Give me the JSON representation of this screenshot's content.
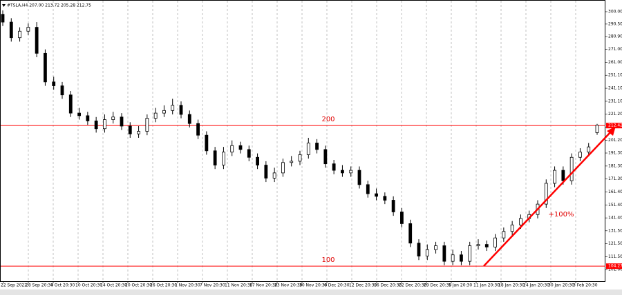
{
  "chart_data": {
    "type": "candlestick",
    "title": "#TSLA,H4 207.00 213.72 205.28 212.75",
    "open": [
      298,
      292,
      280,
      285,
      288,
      268,
      246,
      243,
      236,
      222,
      220,
      216,
      210,
      217,
      219,
      212,
      206,
      208,
      218,
      222,
      224,
      228,
      221,
      214,
      205,
      193,
      182,
      192,
      197,
      194,
      188,
      182,
      172,
      176,
      184,
      185,
      190,
      199,
      194,
      183,
      178,
      176,
      178,
      167,
      160,
      158,
      155,
      146,
      137,
      122,
      112,
      117,
      120,
      108,
      113,
      108,
      120,
      121,
      119,
      126,
      131,
      136,
      141,
      144,
      152,
      168,
      178,
      170,
      188,
      192,
      207
    ],
    "high": [
      301,
      295,
      288,
      291,
      292,
      271,
      250,
      246,
      239,
      226,
      223,
      219,
      221,
      223,
      222,
      215,
      212,
      221,
      226,
      228,
      233,
      231,
      224,
      217,
      208,
      196,
      196,
      201,
      200,
      197,
      191,
      185,
      180,
      187,
      189,
      193,
      203,
      202,
      197,
      186,
      182,
      181,
      181,
      170,
      164,
      161,
      158,
      149,
      140,
      125,
      121,
      123,
      123,
      117,
      116,
      123,
      125,
      124,
      129,
      134,
      139,
      144,
      147,
      155,
      171,
      181,
      181,
      191,
      195,
      199,
      213.72
    ],
    "low": [
      289,
      277,
      277,
      282,
      265,
      243,
      240,
      233,
      219,
      217,
      213,
      207,
      207,
      214,
      209,
      203,
      203,
      205,
      215,
      219,
      221,
      218,
      211,
      202,
      190,
      179,
      179,
      189,
      191,
      185,
      179,
      169,
      169,
      173,
      181,
      182,
      187,
      191,
      180,
      175,
      173,
      173,
      164,
      157,
      155,
      152,
      143,
      134,
      119,
      109,
      109,
      114,
      105,
      105,
      105,
      105,
      117,
      116,
      116,
      123,
      128,
      133,
      138,
      141,
      149,
      165,
      167,
      167,
      185,
      189,
      205.28
    ],
    "close": [
      292,
      280,
      285,
      288,
      268,
      246,
      243,
      236,
      222,
      220,
      216,
      210,
      217,
      219,
      212,
      206,
      208,
      218,
      222,
      224,
      228,
      221,
      214,
      205,
      193,
      182,
      192,
      197,
      194,
      188,
      182,
      172,
      176,
      184,
      185,
      190,
      199,
      194,
      183,
      178,
      176,
      178,
      167,
      160,
      158,
      155,
      146,
      137,
      122,
      112,
      117,
      120,
      108,
      113,
      108,
      120,
      121,
      119,
      126,
      131,
      136,
      141,
      144,
      152,
      168,
      178,
      170,
      188,
      192,
      196,
      212.75
    ],
    "ylim": [
      92.7,
      309.0
    ],
    "yticks": [
      {
        "value": 300,
        "label": "300.00"
      },
      {
        "value": 290.5,
        "label": "290.50"
      },
      {
        "value": 280.9,
        "label": "280.90"
      },
      {
        "value": 271,
        "label": "271.00"
      },
      {
        "value": 261,
        "label": "261.00"
      },
      {
        "value": 251.1,
        "label": "251.10"
      },
      {
        "value": 241.1,
        "label": "241.10"
      },
      {
        "value": 231.1,
        "label": "231.10"
      },
      {
        "value": 221.2,
        "label": "221.20"
      },
      {
        "value": 211.2,
        "label": "211.20"
      },
      {
        "value": 201.2,
        "label": "201.20"
      },
      {
        "value": 191.3,
        "label": "191.30"
      },
      {
        "value": 181.3,
        "label": "181.30"
      },
      {
        "value": 171.3,
        "label": "171.30"
      },
      {
        "value": 161.4,
        "label": "161.40"
      },
      {
        "value": 151.4,
        "label": "151.40"
      },
      {
        "value": 141.4,
        "label": "141.40"
      },
      {
        "value": 131.5,
        "label": "131.50"
      },
      {
        "value": 121.5,
        "label": "121.50"
      },
      {
        "value": 111.5,
        "label": "111.50"
      },
      {
        "value": 101.6,
        "label": "101.60"
      }
    ],
    "xticks": [
      "22 Sep 2022",
      "28 Sep 20:30",
      "4 Oct 20:30",
      "10 Oct 20:30",
      "14 Oct 20:30",
      "20 Oct 20:30",
      "26 Oct 20:30",
      "1 Nov 20:30",
      "7 Nov 20:30",
      "11 Nov 20:30",
      "17 Nov 20:30",
      "23 Nov 20:30",
      "30 Nov 20:30",
      "6 Dec 20:30",
      "12 Dec 20:30",
      "16 Dec 20:30",
      "22 Dec 20:30",
      "29 Dec 20:30",
      "5 Jan 20:30",
      "11 Jan 20:30",
      "18 Jan 20:30",
      "24 Jan 20:30",
      "30 Jan 20:30",
      "3 Feb 20:30"
    ],
    "levels": [
      {
        "value": 212.42,
        "annotation": "200"
      },
      {
        "value": 104.27,
        "annotation": "100"
      }
    ],
    "trend_annotation": "+100%",
    "level_color": "#ff0000",
    "grid": true
  }
}
